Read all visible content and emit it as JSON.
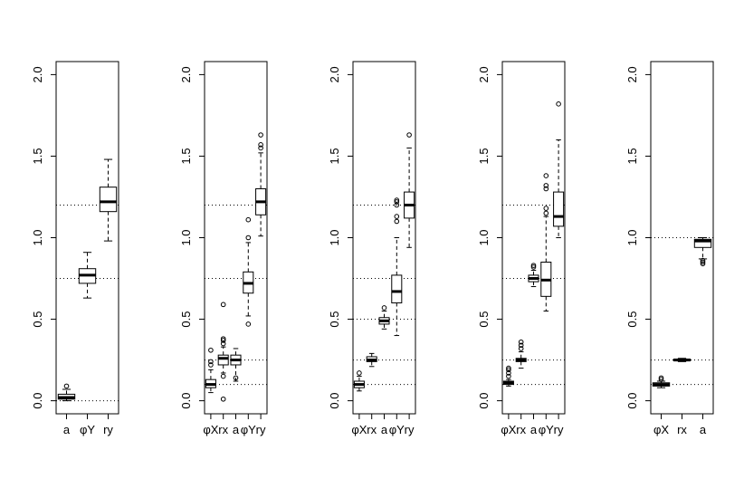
{
  "chart_data": [
    {
      "type": "box",
      "categories": [
        "a",
        "φY",
        "ry"
      ],
      "boxes": [
        {
          "min": 0.0,
          "q1": 0.01,
          "median": 0.02,
          "q3": 0.04,
          "max": 0.07,
          "outliers": [
            0.09
          ]
        },
        {
          "min": 0.63,
          "q1": 0.72,
          "median": 0.77,
          "q3": 0.81,
          "max": 0.91,
          "outliers": []
        },
        {
          "min": 0.98,
          "q1": 1.16,
          "median": 1.22,
          "q3": 1.31,
          "max": 1.48,
          "outliers": []
        }
      ],
      "reference_lines": [
        0,
        0.75,
        1.2
      ],
      "ylim": [
        -0.08,
        2.08
      ],
      "yticks": [
        {
          "value": 0,
          "label": "0.0"
        },
        {
          "value": 0.5,
          "label": "0.5"
        },
        {
          "value": 1,
          "label": "1.0"
        },
        {
          "value": 1.5,
          "label": "1.5"
        },
        {
          "value": 2,
          "label": "2.0"
        }
      ]
    },
    {
      "type": "box",
      "categories": [
        "φX",
        "rx",
        "a",
        "φY",
        "ry"
      ],
      "boxes": [
        {
          "min": 0.05,
          "q1": 0.08,
          "median": 0.1,
          "q3": 0.13,
          "max": 0.19,
          "outliers": [
            0.22,
            0.24,
            0.31
          ]
        },
        {
          "min": 0.17,
          "q1": 0.22,
          "median": 0.26,
          "q3": 0.28,
          "max": 0.33,
          "outliers": [
            0.01,
            0.15,
            0.35,
            0.37,
            0.38,
            0.59
          ]
        },
        {
          "min": 0.12,
          "q1": 0.22,
          "median": 0.25,
          "q3": 0.28,
          "max": 0.32,
          "outliers": [
            0.14
          ]
        },
        {
          "min": 0.52,
          "q1": 0.66,
          "median": 0.72,
          "q3": 0.79,
          "max": 0.97,
          "outliers": [
            0.47,
            1.0,
            1.11
          ]
        },
        {
          "min": 1.01,
          "q1": 1.14,
          "median": 1.22,
          "q3": 1.3,
          "max": 1.52,
          "outliers": [
            1.55,
            1.57,
            1.63
          ]
        }
      ],
      "reference_lines": [
        0.1,
        0.25,
        0.75,
        1.2
      ],
      "ylim": [
        -0.08,
        2.08
      ],
      "yticks": [
        {
          "value": 0,
          "label": "0.0"
        },
        {
          "value": 0.5,
          "label": "0.5"
        },
        {
          "value": 1,
          "label": "1.0"
        },
        {
          "value": 1.5,
          "label": "1.5"
        },
        {
          "value": 2,
          "label": "2.0"
        }
      ]
    },
    {
      "type": "box",
      "categories": [
        "φX",
        "rx",
        "a",
        "φY",
        "ry"
      ],
      "boxes": [
        {
          "min": 0.06,
          "q1": 0.08,
          "median": 0.1,
          "q3": 0.12,
          "max": 0.15,
          "outliers": [
            0.17
          ]
        },
        {
          "min": 0.21,
          "q1": 0.24,
          "median": 0.25,
          "q3": 0.27,
          "max": 0.29,
          "outliers": []
        },
        {
          "min": 0.44,
          "q1": 0.47,
          "median": 0.49,
          "q3": 0.51,
          "max": 0.55,
          "outliers": [
            0.57
          ]
        },
        {
          "min": 0.4,
          "q1": 0.6,
          "median": 0.67,
          "q3": 0.77,
          "max": 1.0,
          "outliers": [
            1.1,
            1.13,
            1.2,
            1.22,
            1.23
          ]
        },
        {
          "min": 0.94,
          "q1": 1.12,
          "median": 1.2,
          "q3": 1.28,
          "max": 1.55,
          "outliers": [
            1.63
          ]
        }
      ],
      "reference_lines": [
        0.1,
        0.25,
        0.5,
        0.75,
        1.2
      ],
      "ylim": [
        -0.08,
        2.08
      ],
      "yticks": [
        {
          "value": 0,
          "label": "0.0"
        },
        {
          "value": 0.5,
          "label": "0.5"
        },
        {
          "value": 1,
          "label": "1.0"
        },
        {
          "value": 1.5,
          "label": "1.5"
        },
        {
          "value": 2,
          "label": "2.0"
        }
      ]
    },
    {
      "type": "box",
      "categories": [
        "φX",
        "rx",
        "a",
        "φY",
        "ry"
      ],
      "boxes": [
        {
          "min": 0.09,
          "q1": 0.1,
          "median": 0.11,
          "q3": 0.12,
          "max": 0.13,
          "outliers": [
            0.15,
            0.17,
            0.19,
            0.2
          ]
        },
        {
          "min": 0.2,
          "q1": 0.24,
          "median": 0.25,
          "q3": 0.26,
          "max": 0.3,
          "outliers": [
            0.32,
            0.34,
            0.36
          ]
        },
        {
          "min": 0.7,
          "q1": 0.73,
          "median": 0.75,
          "q3": 0.77,
          "max": 0.8,
          "outliers": [
            0.82,
            0.83
          ]
        },
        {
          "min": 0.55,
          "q1": 0.64,
          "median": 0.74,
          "q3": 0.85,
          "max": 1.13,
          "outliers": [
            1.15,
            1.18,
            1.3,
            1.32,
            1.38
          ]
        },
        {
          "min": 1.0,
          "q1": 1.07,
          "median": 1.13,
          "q3": 1.28,
          "max": 1.6,
          "outliers": [
            1.82
          ]
        }
      ],
      "reference_lines": [
        0.1,
        0.25,
        0.75,
        1.2
      ],
      "ylim": [
        -0.08,
        2.08
      ],
      "yticks": [
        {
          "value": 0,
          "label": "0.0"
        },
        {
          "value": 0.5,
          "label": "0.5"
        },
        {
          "value": 1,
          "label": "1.0"
        },
        {
          "value": 1.5,
          "label": "1.5"
        },
        {
          "value": 2,
          "label": "2.0"
        }
      ]
    },
    {
      "type": "box",
      "categories": [
        "φX",
        "rx",
        "a"
      ],
      "boxes": [
        {
          "min": 0.08,
          "q1": 0.09,
          "median": 0.1,
          "q3": 0.11,
          "max": 0.12,
          "outliers": [
            0.13,
            0.14
          ]
        },
        {
          "min": 0.24,
          "q1": 0.245,
          "median": 0.25,
          "q3": 0.255,
          "max": 0.26,
          "outliers": []
        },
        {
          "min": 0.87,
          "q1": 0.94,
          "median": 0.98,
          "q3": 0.99,
          "max": 1.0,
          "outliers": [
            0.84,
            0.85,
            0.86
          ]
        }
      ],
      "reference_lines": [
        0.1,
        0.25,
        1.0
      ],
      "ylim": [
        -0.08,
        2.08
      ],
      "yticks": [
        {
          "value": 0,
          "label": "0.0"
        },
        {
          "value": 0.5,
          "label": "0.5"
        },
        {
          "value": 1,
          "label": "1.0"
        },
        {
          "value": 1.5,
          "label": "1.5"
        },
        {
          "value": 2,
          "label": "2.0"
        }
      ]
    }
  ]
}
